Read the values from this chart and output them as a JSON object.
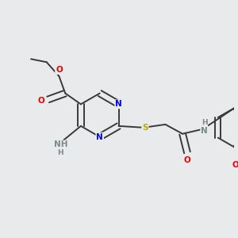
{
  "background_color": "#e8eaeb",
  "bond_color": "#3a3a3a",
  "bond_width": 1.4,
  "atom_colors": {
    "N": "#0000ee",
    "O": "#ee0000",
    "S": "#bbaa00",
    "C": "#3a3a3a",
    "H": "#7a8a8a"
  },
  "font_size": 7.5,
  "fig_width": 3.0,
  "fig_height": 3.0,
  "dpi": 100
}
